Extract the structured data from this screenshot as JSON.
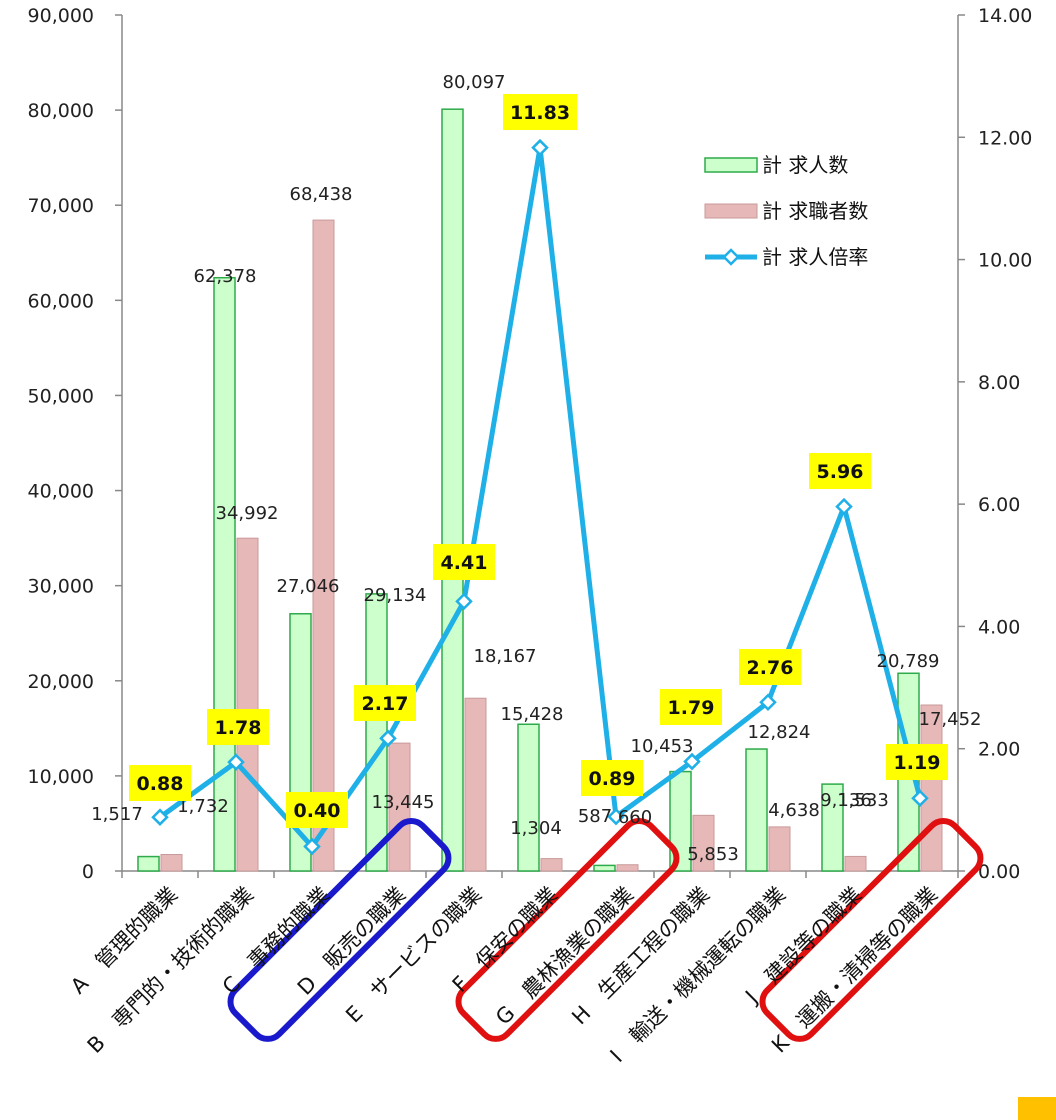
{
  "chart_data": {
    "type": "bar",
    "categories": [
      "A　管理的職業",
      "B　専門的・技術的職業",
      "C　事務的職業",
      "D　販売の職業",
      "E　サービスの職業",
      "F　保安の職業",
      "G　農林漁業の職業",
      "H　生産工程の職業",
      "I　輸送・機械運転の職業",
      "J　建設等の職業",
      "K　運搬・清掃等の職業"
    ],
    "series": [
      {
        "name": "計 求人数",
        "type": "bar",
        "axis": "left",
        "values": [
          1517,
          62378,
          27046,
          29134,
          80097,
          15428,
          587,
          10453,
          12824,
          9136,
          20789
        ],
        "labels": [
          "1,517",
          "62,378",
          "27,046",
          "29,134",
          "80,097",
          "15,428",
          "587",
          "10,453",
          "12,824",
          "9,136",
          "20,789"
        ]
      },
      {
        "name": "計 求職者数",
        "type": "bar",
        "axis": "left",
        "values": [
          1732,
          34992,
          68438,
          13445,
          18167,
          1304,
          660,
          5853,
          4638,
          1533,
          17452
        ],
        "labels": [
          "1,732",
          "34,992",
          "68,438",
          "13,445",
          "18,167",
          "1,304",
          "660",
          "5,853",
          "4,638",
          "1,533",
          "17,452"
        ]
      },
      {
        "name": "計 求人倍率",
        "type": "line",
        "axis": "right",
        "values": [
          0.88,
          1.78,
          0.4,
          2.17,
          4.41,
          11.83,
          0.89,
          1.79,
          2.76,
          5.96,
          1.19
        ],
        "labels": [
          "0.88",
          "1.78",
          "0.40",
          "2.17",
          "4.41",
          "11.83",
          "0.89",
          "1.79",
          "2.76",
          "5.96",
          "1.19"
        ]
      }
    ],
    "y_left": {
      "range": [
        0,
        90000
      ],
      "ticks": [
        "0",
        "10,000",
        "20,000",
        "30,000",
        "40,000",
        "50,000",
        "60,000",
        "70,000",
        "80,000",
        "90,000"
      ]
    },
    "y_right": {
      "range": [
        0,
        14
      ],
      "ticks": [
        "0.00",
        "2.00",
        "4.00",
        "6.00",
        "8.00",
        "10.00",
        "12.00",
        "14.00"
      ]
    },
    "grid": false,
    "legend_position": "top-right",
    "highlighted_categories": [
      {
        "index": 2,
        "color": "#1a1acc"
      },
      {
        "index": 5,
        "color": "#e01010"
      },
      {
        "index": 9,
        "color": "#e01010"
      }
    ],
    "colors": {
      "bar1_fill": "#ccffcc",
      "bar1_stroke": "#2eaa4a",
      "bar2_fill": "#e6b8b7",
      "bar2_stroke": "#c89a99",
      "line": "#1fb0e8",
      "ratio_label_bg": "#ffff00"
    }
  }
}
